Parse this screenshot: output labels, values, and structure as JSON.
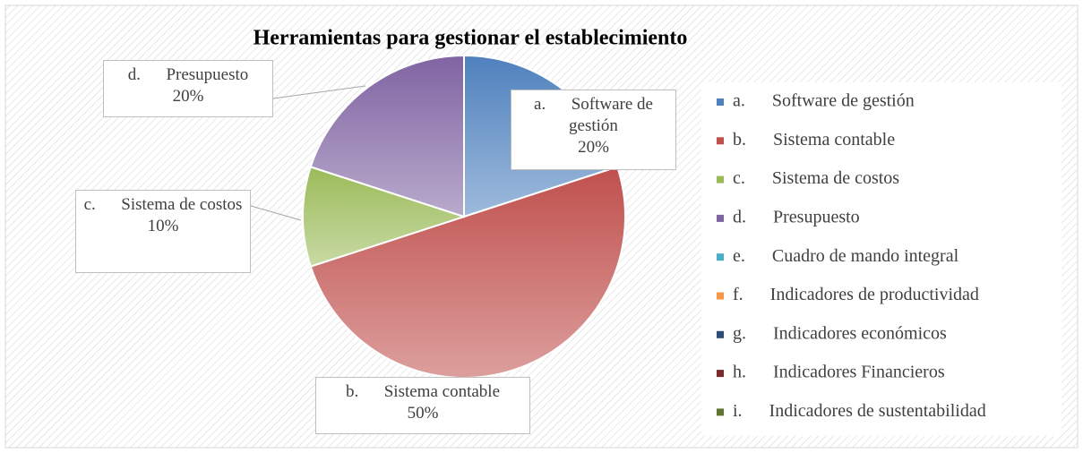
{
  "chart_data": {
    "type": "pie",
    "title": "Herramientas para gestionar el establecimiento",
    "categories": [
      "a.      Software de gestión",
      "b.      Sistema contable",
      "c.      Sistema de costos",
      "d.      Presupuesto",
      "e.      Cuadro de mando integral",
      "f.      Indicadores de productividad",
      "g.      Indicadores económicos",
      "h.      Indicadores Financieros",
      "i.      Indicadores de sustentabilidad"
    ],
    "values": [
      20,
      50,
      10,
      20,
      0,
      0,
      0,
      0,
      0
    ],
    "value_labels": [
      "20%",
      "50%",
      "10%",
      "20%",
      null,
      null,
      null,
      null,
      null
    ],
    "colors": [
      "#4f81bd",
      "#c0504d",
      "#9bbb59",
      "#8064a2",
      "#4bacc6",
      "#f79646",
      "#2c4d75",
      "#772c2a",
      "#5f7530"
    ],
    "legend": "right"
  }
}
